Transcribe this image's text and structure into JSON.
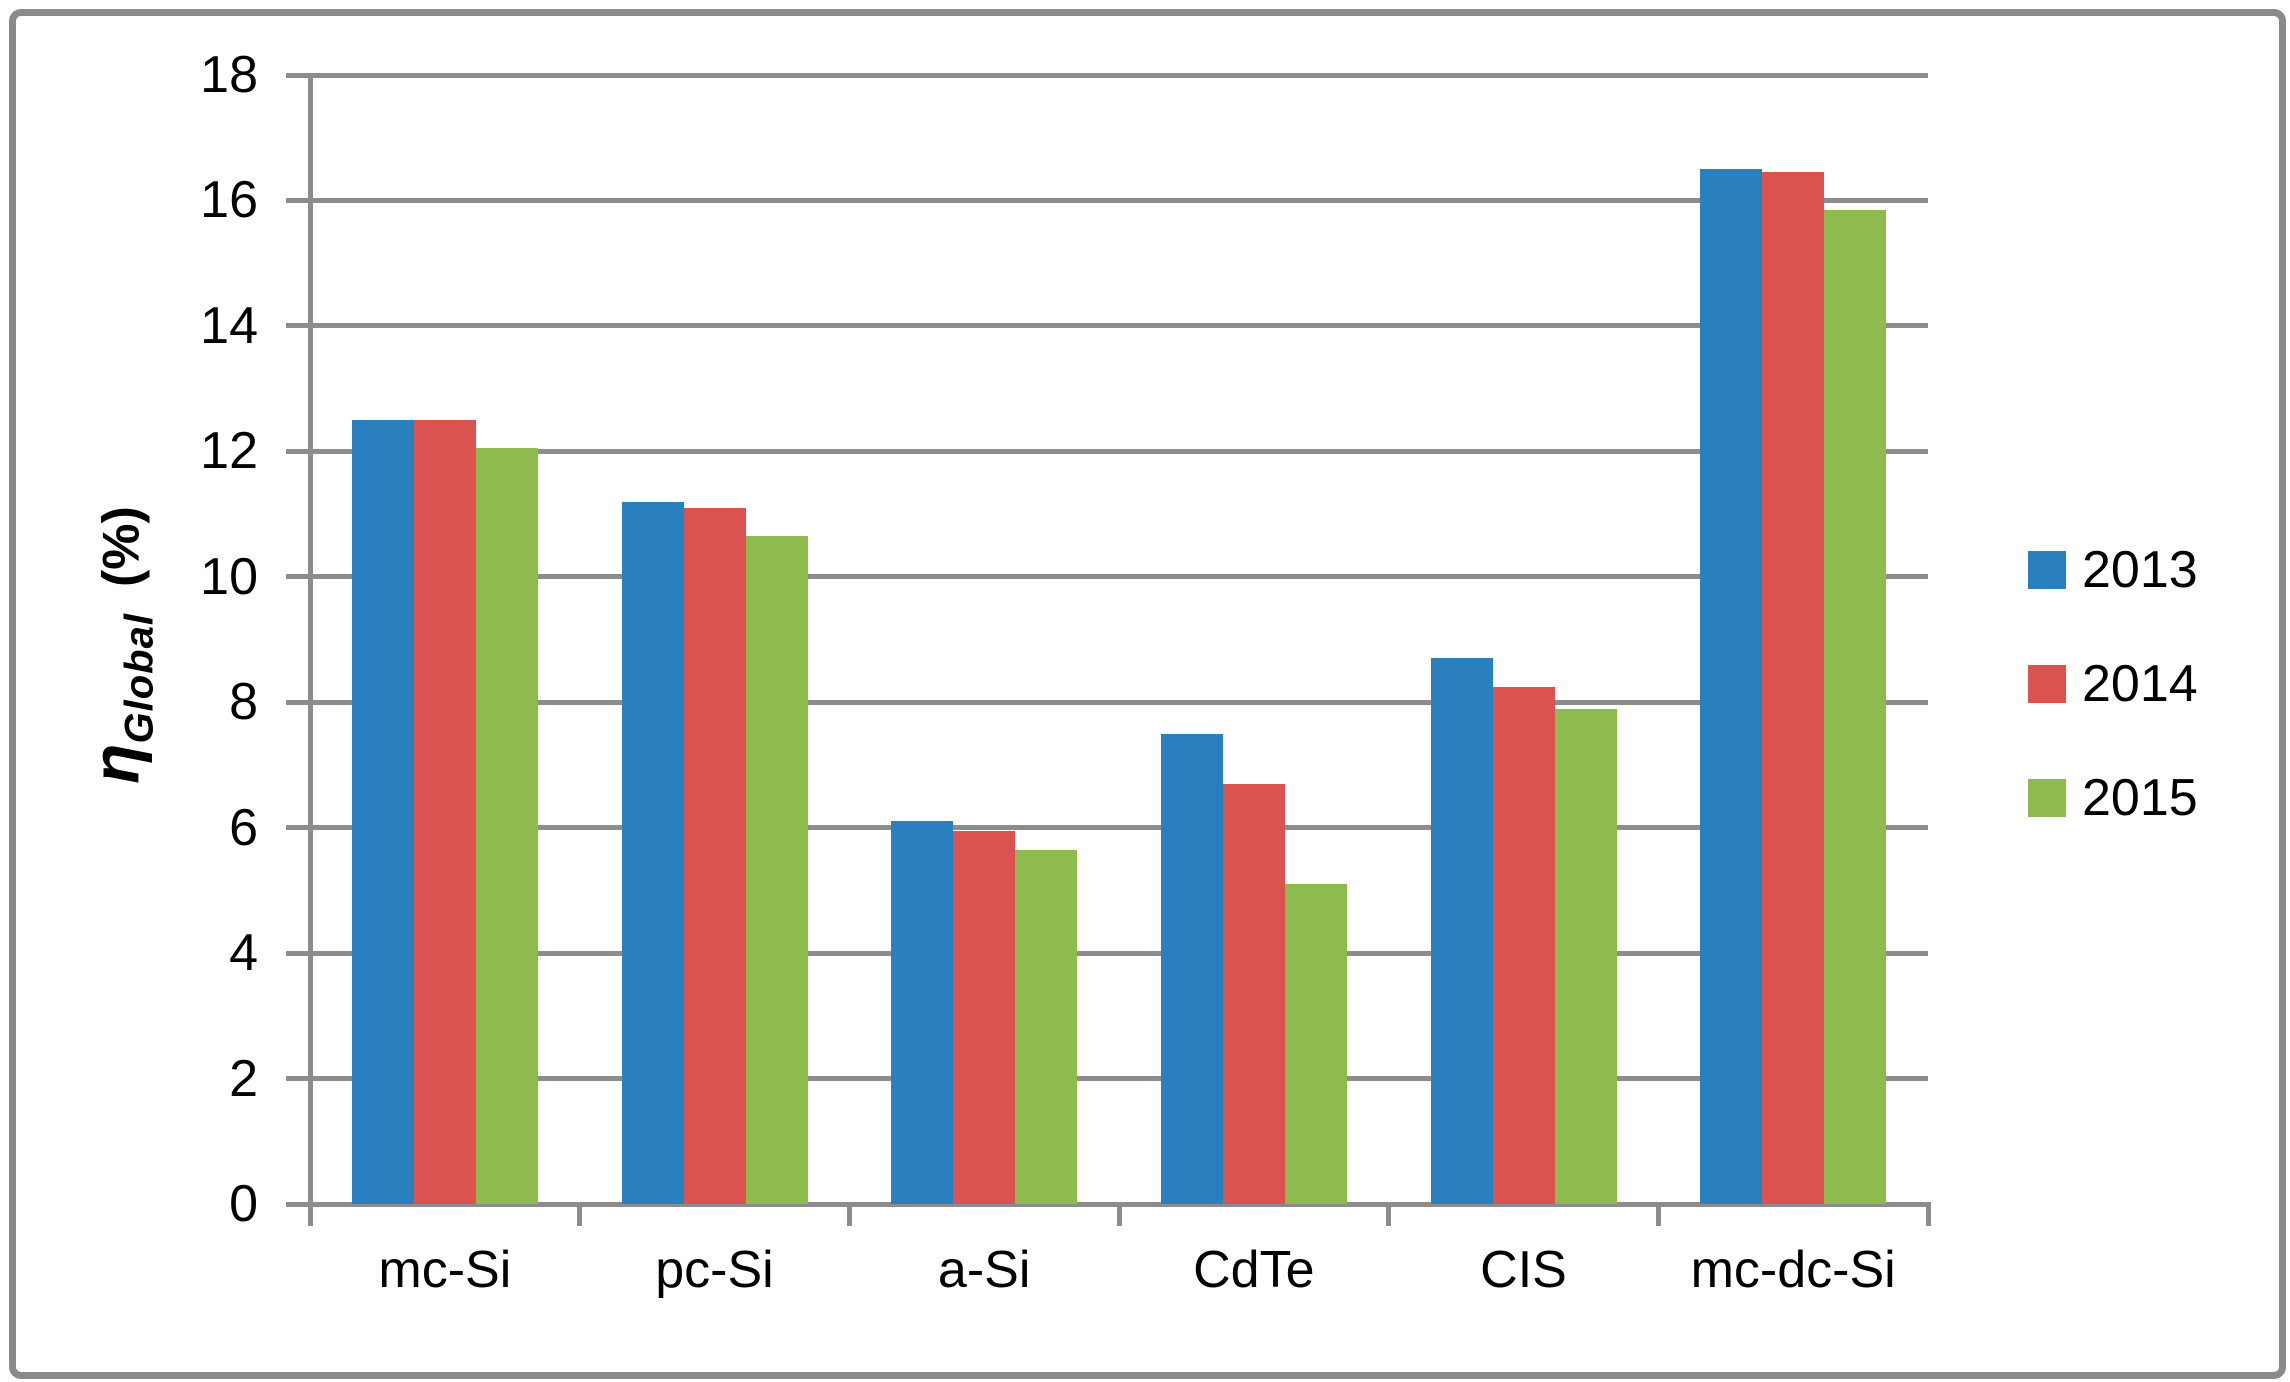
{
  "chart_data": {
    "type": "bar",
    "title": "",
    "categories": [
      "mc-Si",
      "pc-Si",
      "a-Si",
      "CdTe",
      "CIS",
      "mc-dc-Si"
    ],
    "series": [
      {
        "name": "2013",
        "color": "#2a80be",
        "values": [
          12.5,
          11.2,
          6.1,
          7.5,
          8.7,
          16.5
        ]
      },
      {
        "name": "2014",
        "color": "#da5350",
        "values": [
          12.5,
          11.1,
          5.95,
          6.7,
          8.25,
          16.45
        ]
      },
      {
        "name": "2015",
        "color": "#8dbb4d",
        "values": [
          12.05,
          10.65,
          5.65,
          5.1,
          7.9,
          15.85
        ]
      }
    ],
    "ylabel": {
      "symbol": "η",
      "subscript": "Global",
      "unit": "(%)"
    },
    "xlabel": "",
    "y_ticks": [
      18,
      16,
      14,
      12,
      10,
      8,
      6,
      4,
      2,
      0
    ],
    "ylim": [
      0,
      18
    ],
    "grid": true,
    "legend_position": "right"
  },
  "colors": {
    "gridline": "#8c8c8c",
    "axis": "#8c8c8c",
    "border": "#8a8a8a",
    "background": "#ffffff",
    "text": "#000000"
  }
}
